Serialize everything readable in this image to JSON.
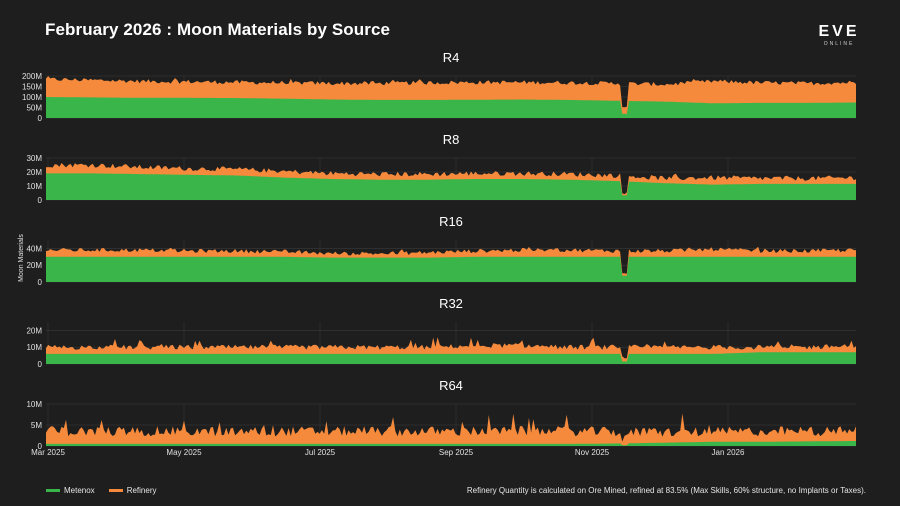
{
  "title": "February 2026 : Moon Materials by Source",
  "logo": {
    "main": "EVE",
    "sub": "ONLINE"
  },
  "footnote": "Refinery Quantity is calculated on Ore Mined, refined at 83.5% (Max Skills, 60% structure, no Implants or Taxes).",
  "colors": {
    "metenox": "#3ab54a",
    "refinery": "#f58a3c",
    "grid": "#3a3a3a",
    "axis_text": "#e0e0e0"
  },
  "legend": [
    {
      "label": "Metenox",
      "color": "#3ab54a"
    },
    {
      "label": "Refinery",
      "color": "#f58a3c"
    }
  ],
  "chart_data": {
    "type": "area",
    "stacked": true,
    "ylabel": "Moon Materials",
    "x_range": [
      "2025-03-01",
      "2026-02-28"
    ],
    "x_ticks": [
      "Mar 2025",
      "May 2025",
      "Jul 2025",
      "Sep 2025",
      "Nov 2025",
      "Jan 2026"
    ],
    "series_names": [
      "Metenox",
      "Refinery"
    ],
    "panels": [
      {
        "title": "R4",
        "ylim": [
          0,
          200
        ],
        "ticks": [
          0,
          50,
          100,
          150,
          200
        ],
        "tick_labels": [
          "0",
          "50M",
          "100M",
          "150M",
          "200M"
        ],
        "metenox": [
          100,
          98,
          96,
          96,
          95,
          92,
          88,
          86,
          86,
          87,
          88,
          86,
          82,
          78,
          70,
          72,
          72,
          74
        ],
        "total": [
          185,
          180,
          175,
          173,
          170,
          168,
          165,
          165,
          168,
          170,
          170,
          168,
          165,
          160,
          175,
          168,
          165,
          170
        ]
      },
      {
        "title": "R8",
        "ylim": [
          0,
          30
        ],
        "ticks": [
          0,
          10,
          20,
          30
        ],
        "tick_labels": [
          "0",
          "10M",
          "20M",
          "30M"
        ],
        "metenox": [
          19,
          19,
          18.5,
          18,
          17.5,
          16,
          15,
          14.5,
          14.5,
          15,
          15,
          14.5,
          13.5,
          12,
          11,
          11.5,
          11.5,
          11.5
        ],
        "total": [
          25,
          25,
          23.5,
          22.5,
          22,
          20.5,
          19,
          18.5,
          18.5,
          19,
          19,
          18.5,
          17.5,
          15.5,
          16,
          15.5,
          15.5,
          16
        ]
      },
      {
        "title": "R16",
        "ylim": [
          0,
          50
        ],
        "ticks": [
          0,
          20,
          40
        ],
        "tick_labels": [
          "0",
          "20M",
          "40M"
        ],
        "metenox": [
          30,
          30,
          30,
          30,
          30,
          30,
          29,
          29,
          29,
          30,
          30,
          30,
          30,
          30,
          30,
          30,
          30,
          30
        ],
        "total": [
          38,
          38,
          38,
          37,
          37,
          36,
          34,
          34,
          35,
          37,
          38,
          38,
          37,
          37,
          39,
          37,
          37,
          38
        ]
      },
      {
        "title": "R32",
        "ylim": [
          0,
          25
        ],
        "ticks": [
          0,
          10,
          20
        ],
        "tick_labels": [
          "0",
          "10M",
          "20M"
        ],
        "metenox": [
          6,
          6,
          6,
          6,
          6,
          6,
          6,
          6,
          6,
          6,
          6,
          6,
          6,
          6,
          6,
          7,
          7,
          7
        ],
        "total": [
          10,
          10,
          10,
          10,
          10,
          10,
          10,
          10,
          10,
          11,
          11,
          10,
          10,
          10,
          10,
          10,
          10,
          11
        ]
      },
      {
        "title": "R64",
        "ylim": [
          0,
          10
        ],
        "ticks": [
          0,
          5,
          10
        ],
        "tick_labels": [
          "0",
          "5M",
          "10M"
        ],
        "metenox": [
          0.5,
          0.5,
          0.5,
          0.5,
          0.5,
          0.5,
          0.5,
          0.5,
          0.5,
          0.5,
          0.5,
          0.5,
          0.6,
          0.8,
          1.0,
          1.0,
          1.1,
          1.2
        ],
        "total": [
          3.5,
          3.5,
          3.5,
          3.5,
          3.4,
          3.5,
          3.5,
          3.5,
          3.5,
          3.5,
          3.6,
          3.5,
          3.4,
          3.3,
          3.4,
          3.5,
          3.5,
          3.6
        ]
      }
    ]
  }
}
